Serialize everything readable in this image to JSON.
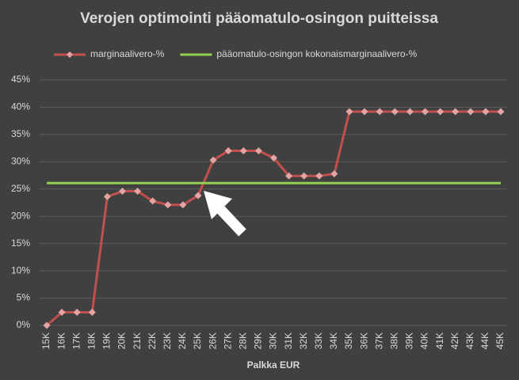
{
  "chart_data": {
    "type": "line",
    "title": "Verojen optimointi pääomatulo-osingon puitteissa",
    "x_label": "Palkka EUR",
    "categories": [
      "15K",
      "16K",
      "17K",
      "18K",
      "19K",
      "20K",
      "21K",
      "22K",
      "23K",
      "24K",
      "25K",
      "26K",
      "27K",
      "28K",
      "29K",
      "30K",
      "31K",
      "32K",
      "33K",
      "34K",
      "35K",
      "36K",
      "37K",
      "38K",
      "39K",
      "40K",
      "41K",
      "42K",
      "43K",
      "44K",
      "45K"
    ],
    "series": [
      {
        "name": "marginaalivero-%",
        "color": "#c0504d",
        "marker_color": "#e6a3a3",
        "marker": "diamond",
        "values": [
          0,
          2.4,
          2.4,
          2.4,
          23.6,
          24.6,
          24.6,
          22.8,
          22.1,
          22.1,
          23.8,
          30.3,
          32,
          32,
          32,
          30.7,
          27.4,
          27.4,
          27.4,
          27.8,
          39.2,
          39.2,
          39.2,
          39.2,
          39.2,
          39.2,
          39.2,
          39.2,
          39.2,
          39.2,
          39.2
        ]
      },
      {
        "name": "pääomatulo-osingon kokonaismarginaalivero-%",
        "color": "#92d050",
        "values": [
          26.1,
          26.1,
          26.1,
          26.1,
          26.1,
          26.1,
          26.1,
          26.1,
          26.1,
          26.1,
          26.1,
          26.1,
          26.1,
          26.1,
          26.1,
          26.1,
          26.1,
          26.1,
          26.1,
          26.1,
          26.1,
          26.1,
          26.1,
          26.1,
          26.1,
          26.1,
          26.1,
          26.1,
          26.1,
          26.1,
          26.1
        ]
      }
    ],
    "ylim": [
      0,
      45
    ],
    "yticks": [
      {
        "value": 0,
        "label": "0%"
      },
      {
        "value": 5,
        "label": "5%"
      },
      {
        "value": 10,
        "label": "10%"
      },
      {
        "value": 15,
        "label": "15%"
      },
      {
        "value": 20,
        "label": "20%"
      },
      {
        "value": 25,
        "label": "25%"
      },
      {
        "value": 30,
        "label": "30%"
      },
      {
        "value": 35,
        "label": "35%"
      },
      {
        "value": 40,
        "label": "40%"
      },
      {
        "value": 45,
        "label": "45%"
      }
    ],
    "grid": true,
    "legend": "top"
  }
}
